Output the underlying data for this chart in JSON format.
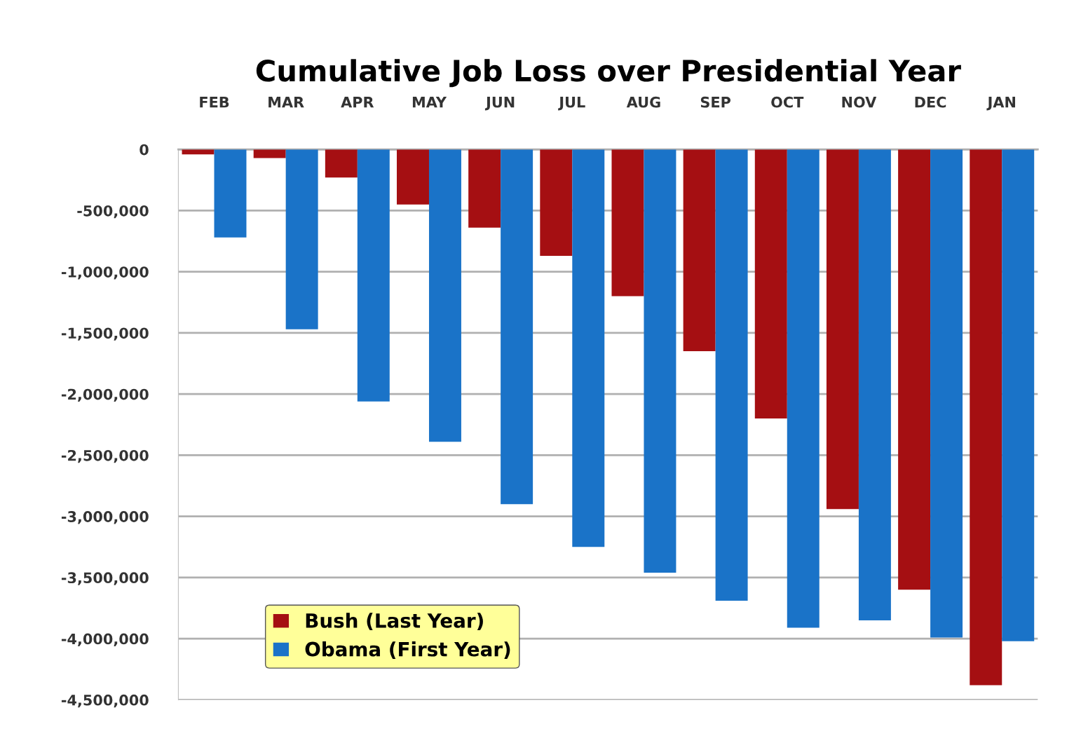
{
  "chart_data": {
    "type": "bar",
    "title": "Cumulative Job Loss over Presidential Year",
    "categories": [
      "FEB",
      "MAR",
      "APR",
      "MAY",
      "JUN",
      "JUL",
      "AUG",
      "SEP",
      "OCT",
      "NOV",
      "DEC",
      "JAN"
    ],
    "series": [
      {
        "name": "Bush (Last Year)",
        "color": "#a50f12",
        "values": [
          -40000,
          -70000,
          -230000,
          -450000,
          -640000,
          -870000,
          -1200000,
          -1650000,
          -2200000,
          -2940000,
          -3600000,
          -4380000
        ]
      },
      {
        "name": "Obama (First Year)",
        "color": "#1a73c8",
        "values": [
          -720000,
          -1470000,
          -2060000,
          -2390000,
          -2900000,
          -3250000,
          -3460000,
          -3690000,
          -3910000,
          -3850000,
          -3990000,
          -4020000
        ]
      }
    ],
    "ylim": [
      -4500000,
      0
    ],
    "yticks": [
      {
        "value": 0,
        "label": "0"
      },
      {
        "value": -500000,
        "label": "-500,000"
      },
      {
        "value": -1000000,
        "label": "-1,000,000"
      },
      {
        "value": -1500000,
        "label": "-1,500,000"
      },
      {
        "value": -2000000,
        "label": "-2,000,000"
      },
      {
        "value": -2500000,
        "label": "-2,500,000"
      },
      {
        "value": -3000000,
        "label": "-3,000,000"
      },
      {
        "value": -3500000,
        "label": "-3,500,000"
      },
      {
        "value": -4000000,
        "label": "-4,000,000"
      },
      {
        "value": -4500000,
        "label": "-4,500,000"
      }
    ],
    "grid": "y",
    "legend": "bottom left"
  }
}
